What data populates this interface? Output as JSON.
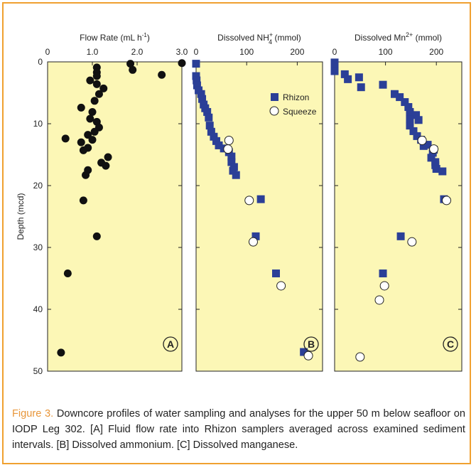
{
  "caption": {
    "label": "Figure 3.",
    "text": " Downcore profiles of water sampling and analyses for the upper 50 m below seafloor on IODP Leg 302. [A] Fluid flow rate into Rhizon samplers averaged across examined sediment intervals. [B] Dissolved ammonium. [C] Dissolved manganese."
  },
  "colors": {
    "border": "#f0a030",
    "panel_bg": "#fcf7b6",
    "rhizon": "#2b3f97",
    "squeeze": "#ffffff",
    "flow": "#111111",
    "caption_label": "#e8963a"
  },
  "chart_data": [
    {
      "type": "scatter",
      "panel_label": "A",
      "title": "Flow Rate (mL h-1)",
      "title_parts": [
        "Flow Rate (mL h",
        "-1",
        ")"
      ],
      "ylabel": "Depth (mcd)",
      "xlim": [
        0,
        3.0
      ],
      "ylim": [
        0,
        50
      ],
      "x_ticks": [
        0,
        1.0,
        2.0,
        3.0
      ],
      "x_tick_labels": [
        "0",
        "1.0",
        "2.0",
        "3.0"
      ],
      "y_ticks": [
        0,
        10,
        20,
        30,
        40,
        50
      ],
      "y_tick_labels": [
        "0",
        "10",
        "20",
        "30",
        "40",
        "50"
      ],
      "series": [
        {
          "marker": "filled-circle",
          "points": [
            [
              3.0,
              0.2
            ],
            [
              1.85,
              0.3
            ],
            [
              1.9,
              1.3
            ],
            [
              2.55,
              2.1
            ],
            [
              1.1,
              0.9
            ],
            [
              1.1,
              1.7
            ],
            [
              1.1,
              2.3
            ],
            [
              0.95,
              3.0
            ],
            [
              1.1,
              3.6
            ],
            [
              1.25,
              4.3
            ],
            [
              1.15,
              5.2
            ],
            [
              1.05,
              6.3
            ],
            [
              0.75,
              7.4
            ],
            [
              1.0,
              8.1
            ],
            [
              0.95,
              9.2
            ],
            [
              1.1,
              9.7
            ],
            [
              1.15,
              10.6
            ],
            [
              1.05,
              11.3
            ],
            [
              0.9,
              11.8
            ],
            [
              0.4,
              12.4
            ],
            [
              1.0,
              12.6
            ],
            [
              0.75,
              13.0
            ],
            [
              0.9,
              13.9
            ],
            [
              0.8,
              14.3
            ],
            [
              1.35,
              15.4
            ],
            [
              1.2,
              16.3
            ],
            [
              1.3,
              16.8
            ],
            [
              0.9,
              17.5
            ],
            [
              0.85,
              18.3
            ],
            [
              0.8,
              22.4
            ],
            [
              1.1,
              28.2
            ],
            [
              0.45,
              34.2
            ],
            [
              0.3,
              47.0
            ]
          ]
        }
      ]
    },
    {
      "type": "scatter",
      "panel_label": "B",
      "title": "Dissolved NH4+ (mmol)",
      "title_parts": [
        "Dissolved NH",
        "+",
        "4",
        " (mmol)"
      ],
      "xlim": [
        0,
        250
      ],
      "ylim": [
        0,
        50
      ],
      "x_ticks": [
        0,
        100,
        200
      ],
      "x_tick_labels": [
        "0",
        "100",
        "200"
      ],
      "y_ticks": [
        0,
        10,
        20,
        30,
        40,
        50
      ],
      "legend_position": "top-right",
      "series": [
        {
          "name": "Rhizon",
          "marker": "square",
          "points": [
            [
              0,
              0.3
            ],
            [
              0,
              2.3
            ],
            [
              1,
              3.0
            ],
            [
              2,
              3.8
            ],
            [
              5,
              4.6
            ],
            [
              10,
              5.2
            ],
            [
              12,
              6.0
            ],
            [
              15,
              6.9
            ],
            [
              18,
              7.5
            ],
            [
              22,
              8.1
            ],
            [
              25,
              9.0
            ],
            [
              27,
              10.3
            ],
            [
              30,
              11.3
            ],
            [
              35,
              12.1
            ],
            [
              40,
              12.8
            ],
            [
              45,
              13.5
            ],
            [
              55,
              14.0
            ],
            [
              65,
              14.6
            ],
            [
              70,
              15.3
            ],
            [
              70,
              16.2
            ],
            [
              75,
              17.0
            ],
            [
              73,
              17.6
            ],
            [
              79,
              18.3
            ],
            [
              128,
              22.2
            ],
            [
              118,
              28.2
            ],
            [
              158,
              34.2
            ],
            [
              213,
              46.9
            ]
          ]
        },
        {
          "name": "Squeeze",
          "marker": "open-circle",
          "points": [
            [
              65,
              12.7
            ],
            [
              63,
              14.1
            ],
            [
              105,
              22.4
            ],
            [
              113,
              29.1
            ],
            [
              168,
              36.2
            ],
            [
              222,
              47.5
            ]
          ]
        }
      ]
    },
    {
      "type": "scatter",
      "panel_label": "C",
      "title": "Dissolved Mn2+ (mmol)",
      "title_parts": [
        "Dissolved Mn",
        "2+",
        " (mmol)"
      ],
      "xlim": [
        0,
        250
      ],
      "ylim": [
        0,
        50
      ],
      "x_ticks": [
        0,
        100,
        200
      ],
      "x_tick_labels": [
        "0",
        "100",
        "200"
      ],
      "y_ticks": [
        0,
        10,
        20,
        30,
        40,
        50
      ],
      "series": [
        {
          "name": "Rhizon",
          "marker": "square",
          "points": [
            [
              0,
              0.1
            ],
            [
              0,
              0.8
            ],
            [
              0,
              1.5
            ],
            [
              20,
              2.0
            ],
            [
              26,
              2.8
            ],
            [
              48,
              2.5
            ],
            [
              52,
              4.1
            ],
            [
              95,
              3.7
            ],
            [
              118,
              5.2
            ],
            [
              128,
              5.7
            ],
            [
              138,
              6.5
            ],
            [
              145,
              7.3
            ],
            [
              148,
              8.1
            ],
            [
              160,
              8.6
            ],
            [
              148,
              9.3
            ],
            [
              165,
              9.4
            ],
            [
              148,
              10.3
            ],
            [
              155,
              11.2
            ],
            [
              162,
              12.0
            ],
            [
              170,
              12.6
            ],
            [
              183,
              13.4
            ],
            [
              175,
              13.6
            ],
            [
              195,
              14.2
            ],
            [
              193,
              14.7
            ],
            [
              190,
              15.5
            ],
            [
              198,
              16.2
            ],
            [
              198,
              16.7
            ],
            [
              200,
              17.3
            ],
            [
              212,
              17.7
            ],
            [
              215,
              22.2
            ],
            [
              130,
              28.2
            ],
            [
              95,
              34.2
            ]
          ]
        },
        {
          "name": "Squeeze",
          "marker": "open-circle",
          "points": [
            [
              172,
              12.7
            ],
            [
              195,
              14.1
            ],
            [
              220,
              22.4
            ],
            [
              152,
              29.1
            ],
            [
              98,
              36.2
            ],
            [
              88,
              38.5
            ],
            [
              50,
              47.7
            ]
          ]
        }
      ]
    }
  ],
  "legend": {
    "rhizon": "Rhizon",
    "squeeze": "Squeeze"
  }
}
